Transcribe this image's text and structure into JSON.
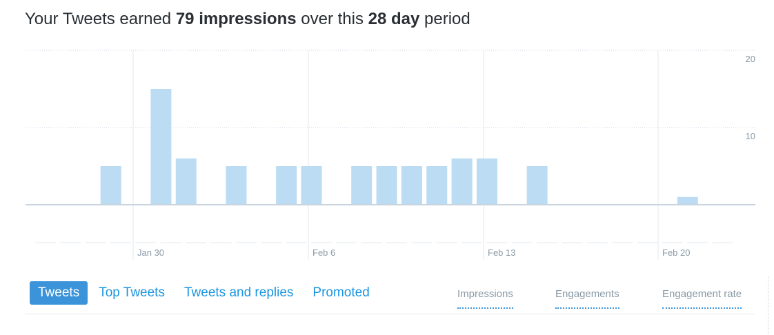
{
  "headline": {
    "prefix": "Your Tweets earned ",
    "impressions_count": "79 impressions",
    "middle": " over this ",
    "period": "28 day",
    "suffix": " period"
  },
  "chart_data": {
    "type": "bar",
    "y_ticks": [
      "20",
      "10"
    ],
    "ylim": [
      0,
      20
    ],
    "x_tick_labels": [
      "Jan 30",
      "Feb 6",
      "Feb 13",
      "Feb 20"
    ],
    "values": [
      0,
      0,
      5,
      0,
      15,
      6,
      0,
      5,
      0,
      5,
      5,
      0,
      5,
      5,
      5,
      5,
      6,
      6,
      0,
      5,
      0,
      0,
      0,
      0,
      0,
      1,
      0,
      0
    ],
    "grid": true,
    "bar_color": "#bbdcf3"
  },
  "tabs": [
    {
      "label": "Tweets",
      "active": true
    },
    {
      "label": "Top Tweets",
      "active": false
    },
    {
      "label": "Tweets and replies",
      "active": false
    },
    {
      "label": "Promoted",
      "active": false
    }
  ],
  "metrics": {
    "impressions": "Impressions",
    "engagements": "Engagements",
    "engagement_rate": "Engagement rate"
  },
  "colors": {
    "accent": "#3b94d9",
    "link": "#1b95e0",
    "muted": "#8899a6"
  }
}
